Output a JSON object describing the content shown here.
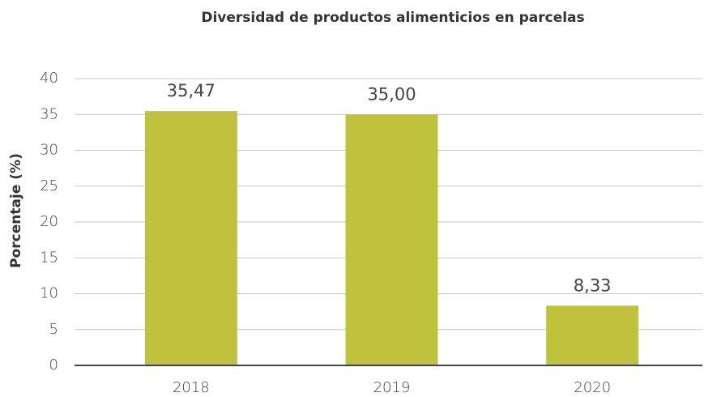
{
  "chart_data": {
    "type": "bar",
    "title": "Diversidad de productos alimenticios en parcelas",
    "ylabel": "Porcentaje (%)",
    "categories": [
      "2018",
      "2019",
      "2020"
    ],
    "values": [
      35.47,
      35.0,
      8.33
    ],
    "value_labels": [
      "35,47",
      "35,00",
      "8,33"
    ],
    "color": "#bfc23d",
    "ylim": [
      0,
      40
    ],
    "yticks": [
      0,
      5,
      10,
      15,
      20,
      25,
      30,
      35,
      40
    ],
    "grid": true
  }
}
